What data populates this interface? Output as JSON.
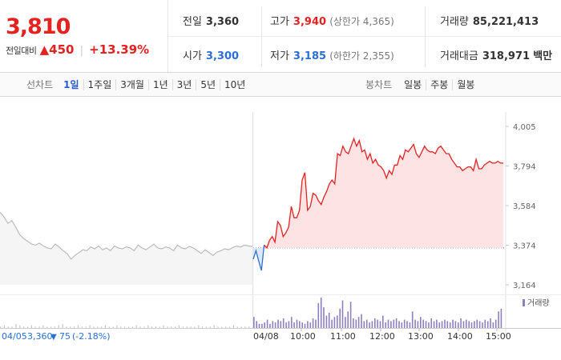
{
  "quote": {
    "price": "3,810",
    "change_label": "전일대비",
    "change_arrow": "▲",
    "change": "450",
    "change_pct": "+13.39%"
  },
  "stats": {
    "prev_close": {
      "label": "전일",
      "value": "3,360"
    },
    "high": {
      "label": "고가",
      "value": "3,940",
      "sub": "(상한가 4,365)"
    },
    "volume": {
      "label": "거래량",
      "value": "85,221,413"
    },
    "open": {
      "label": "시가",
      "value": "3,300"
    },
    "low": {
      "label": "저가",
      "value": "3,185",
      "sub": "(하한가 2,355)"
    },
    "amount": {
      "label": "거래대금",
      "value": "318,971",
      "unit": "백만"
    }
  },
  "period_tabs": {
    "title": "선차트",
    "items": [
      "1일",
      "1주일",
      "3개월",
      "1년",
      "3년",
      "5년",
      "10년"
    ],
    "active": "1일"
  },
  "candle_tabs": {
    "title": "봉차트",
    "items": [
      "일봉",
      "주봉",
      "월봉"
    ]
  },
  "prev_day_info": {
    "date": "04/05",
    "close": "3,360",
    "arrow": "▼",
    "change": "75",
    "pct": "(-2.18%)"
  },
  "colors": {
    "up": "#e52222",
    "down": "#2a6fd6",
    "prev_line": "#bbbbbb",
    "volume": "#8f7fc1",
    "up_fill": "#fde3e3"
  },
  "chart_data": {
    "type": "line",
    "y_ticks": [
      "4,005",
      "3,794",
      "3,584",
      "3,374",
      "3,164"
    ],
    "ylim": [
      3164,
      4005
    ],
    "reference": 3360,
    "x_ticks": [
      "04/05",
      "04/08",
      "10:00",
      "11:00",
      "12:00",
      "13:00",
      "14:00",
      "15:00"
    ],
    "volume_label": "거래량",
    "prev_day_series": [
      3550,
      3525,
      3490,
      3505,
      3470,
      3430,
      3410,
      3395,
      3380,
      3375,
      3385,
      3370,
      3360,
      3355,
      3380,
      3365,
      3345,
      3330,
      3300,
      3320,
      3335,
      3350,
      3345,
      3365,
      3355,
      3370,
      3350,
      3360,
      3345,
      3370,
      3360,
      3355,
      3365,
      3360,
      3345,
      3375,
      3360,
      3350,
      3365,
      3380,
      3360,
      3355,
      3365,
      3360,
      3345,
      3375,
      3360,
      3355,
      3368,
      3360,
      3345,
      3330,
      3350,
      3335,
      3320,
      3338,
      3345,
      3355,
      3350,
      3362,
      3370,
      3365,
      3375,
      3370,
      3368
    ],
    "today_series": [
      3300,
      3345,
      3290,
      3240,
      3375,
      3360,
      3400,
      3420,
      3390,
      3500,
      3480,
      3420,
      3440,
      3470,
      3580,
      3520,
      3520,
      3560,
      3720,
      3760,
      3560,
      3580,
      3650,
      3640,
      3610,
      3590,
      3630,
      3660,
      3700,
      3720,
      3700,
      3860,
      3850,
      3900,
      3870,
      3860,
      3900,
      3940,
      3900,
      3930,
      3870,
      3880,
      3830,
      3860,
      3810,
      3830,
      3800,
      3790,
      3770,
      3730,
      3770,
      3750,
      3800,
      3800,
      3850,
      3830,
      3880,
      3870,
      3890,
      3910,
      3860,
      3840,
      3870,
      3900,
      3880,
      3870,
      3870,
      3860,
      3890,
      3900,
      3880,
      3860,
      3860,
      3830,
      3810,
      3790,
      3790,
      3770,
      3780,
      3790,
      3790,
      3770,
      3830,
      3780,
      3780,
      3800,
      3810,
      3820,
      3810,
      3810,
      3820,
      3810,
      3810
    ],
    "prev_day_volume": [
      1,
      2,
      1,
      1,
      3,
      2,
      1,
      1,
      2,
      1,
      1,
      2,
      1,
      1,
      1,
      2,
      3,
      1,
      1,
      1,
      2,
      1,
      1,
      2,
      1,
      1,
      1,
      2,
      1,
      1,
      2,
      1,
      1,
      1,
      1,
      2,
      1,
      1,
      2,
      1,
      1,
      1,
      2,
      1,
      1,
      1,
      2,
      1,
      1,
      1,
      1,
      2,
      1,
      1,
      1,
      2,
      1,
      1,
      1,
      1,
      2,
      1,
      1,
      1,
      1
    ],
    "today_volume": [
      8,
      5,
      3,
      3,
      4,
      6,
      3,
      5,
      4,
      6,
      5,
      7,
      4,
      5,
      8,
      4,
      6,
      5,
      4,
      3,
      5,
      4,
      7,
      6,
      18,
      22,
      15,
      9,
      11,
      6,
      8,
      9,
      14,
      20,
      8,
      12,
      19,
      7,
      6,
      8,
      10,
      5,
      6,
      4,
      5,
      7,
      6,
      5,
      9,
      4,
      6,
      5,
      6,
      7,
      5,
      4,
      6,
      5,
      4,
      12,
      6,
      5,
      8,
      6,
      5,
      4,
      7,
      5,
      6,
      4,
      5,
      6,
      5,
      4,
      6,
      5,
      4,
      7,
      5,
      6,
      5,
      4,
      5,
      6,
      5,
      4,
      6,
      5,
      7,
      4,
      6,
      12,
      14
    ]
  }
}
